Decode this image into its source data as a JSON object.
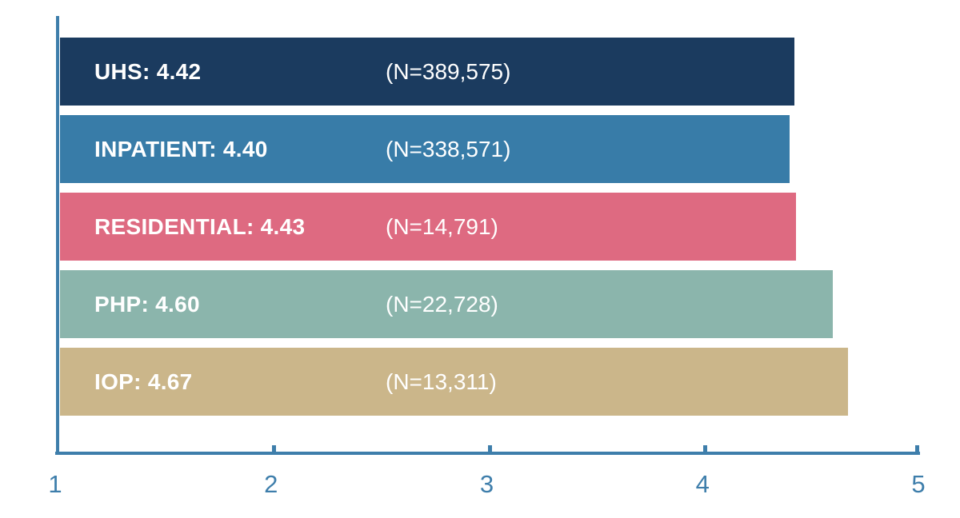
{
  "chart_data": {
    "type": "bar",
    "orientation": "horizontal",
    "title": "",
    "xlabel": "",
    "ylabel": "",
    "categories": [
      "UHS",
      "INPATIENT",
      "RESIDENTIAL",
      "PHP",
      "IOP"
    ],
    "values": [
      4.42,
      4.4,
      4.43,
      4.6,
      4.67
    ],
    "n_counts": [
      389575,
      338571,
      14791,
      22728,
      13311
    ],
    "bar_labels": [
      "UHS: 4.42",
      "INPATIENT: 4.40",
      "RESIDENTIAL: 4.43",
      "PHP: 4.60",
      "IOP: 4.67"
    ],
    "n_labels": [
      "(N=389,575)",
      "(N=338,571)",
      "(N=14,791)",
      "(N=22,728)",
      "(N=13,311)"
    ],
    "bar_colors": [
      "#1B3B5F",
      "#387CA8",
      "#DE6A81",
      "#8BB5AC",
      "#CBB68A"
    ],
    "bar_text_color": "#FFFFFF",
    "xlim": [
      1,
      5
    ],
    "x_ticks": [
      "1",
      "2",
      "3",
      "4",
      "5"
    ],
    "x_tick_values": [
      1,
      2,
      3,
      4,
      5
    ],
    "axis_color": "#3E7EAB",
    "tick_label_color": "#3E7EAB",
    "grid": false,
    "legend": false
  }
}
